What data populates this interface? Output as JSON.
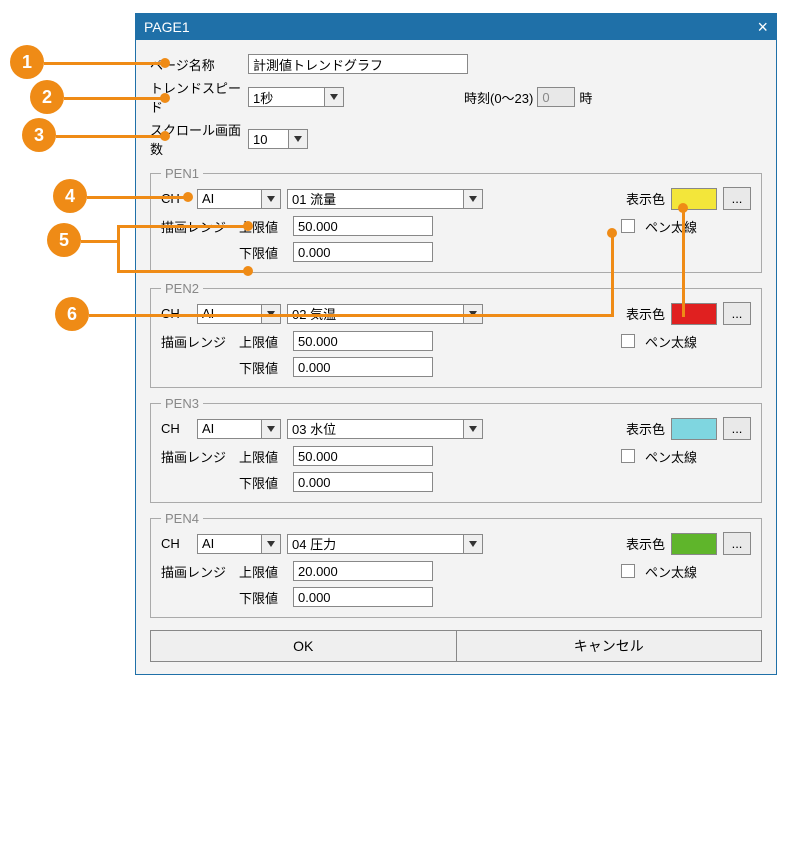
{
  "colors": {
    "accent": "#ef8b16",
    "titlebar": "#1f70a8",
    "dialog_bg": "#f3f3f3"
  },
  "badges": [
    "1",
    "2",
    "3",
    "4",
    "5",
    "6"
  ],
  "dialog": {
    "title": "PAGE1",
    "page_name_label": "ページ名称",
    "page_name": "計測値トレンドグラフ",
    "trend_speed_label": "トレンドスピード",
    "trend_speed": "1秒",
    "time_label": "時刻(0〜23)",
    "time_value": "0",
    "time_unit": "時",
    "scroll_label": "スクロール画面数",
    "scroll_value": "10",
    "ch_label": "CH",
    "range_label": "描画レンジ",
    "upper_label": "上限値",
    "lower_label": "下限値",
    "color_label": "表示色",
    "thick_label": "ペン太線",
    "dots": "...",
    "pens": [
      {
        "legend": "PEN1",
        "ch_type": "AI",
        "ch_item": "01 流量",
        "upper": "50.000",
        "lower": "0.000",
        "color": "#f3e63a"
      },
      {
        "legend": "PEN2",
        "ch_type": "AI",
        "ch_item": "02 気温",
        "upper": "50.000",
        "lower": "0.000",
        "color": "#e02020"
      },
      {
        "legend": "PEN3",
        "ch_type": "AI",
        "ch_item": "03 水位",
        "upper": "50.000",
        "lower": "0.000",
        "color": "#7fd6e0"
      },
      {
        "legend": "PEN4",
        "ch_type": "AI",
        "ch_item": "04 圧力",
        "upper": "20.000",
        "lower": "0.000",
        "color": "#5fb52b"
      }
    ],
    "ok": "OK",
    "cancel": "キャンセル"
  }
}
